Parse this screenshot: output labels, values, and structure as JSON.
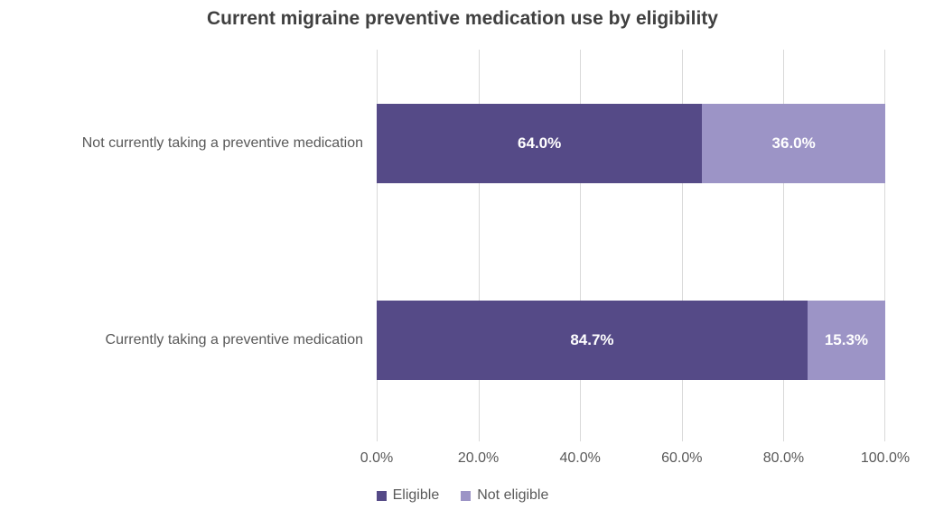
{
  "title": "Current migraine preventive medication use by eligibility",
  "chart_data": {
    "type": "bar",
    "orientation": "horizontal",
    "stacked": true,
    "title": "Current migraine preventive medication use by eligibility",
    "categories": [
      "Not currently taking a preventive medication",
      "Currently taking a preventive medication"
    ],
    "series": [
      {
        "name": "Eligible",
        "color": "#554A87",
        "values": [
          64.0,
          84.7
        ],
        "labels": [
          "64.0%",
          "84.7%"
        ]
      },
      {
        "name": "Not eligible",
        "color": "#9C94C6",
        "values": [
          36.0,
          15.3
        ],
        "labels": [
          "36.0%",
          "15.3%"
        ]
      }
    ],
    "xlim": [
      0,
      100
    ],
    "x_tick_labels": [
      "0.0%",
      "20.0%",
      "40.0%",
      "60.0%",
      "80.0%",
      "100.0%"
    ],
    "xlabel": "",
    "ylabel": "",
    "grid": true,
    "legend_position": "bottom"
  },
  "colors": {
    "title_text": "#404040",
    "axis_text": "#595959",
    "category_text": "#595959",
    "gridline": "#D9D9D9",
    "data_label_text": "#FFFFFF",
    "background": "#FFFFFF",
    "series_eligible": "#554A87",
    "series_not_eligible": "#9C94C6"
  }
}
